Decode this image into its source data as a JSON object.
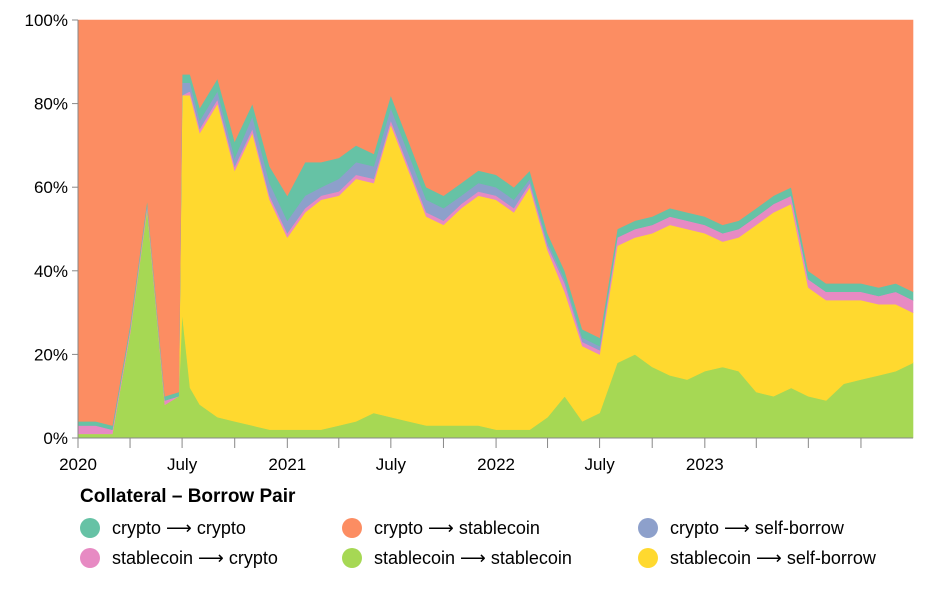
{
  "chart_data": {
    "type": "area",
    "stacking": "normalize",
    "y_ticks": [
      "0%",
      "20%",
      "40%",
      "60%",
      "80%",
      "100%"
    ],
    "ylim": [
      0,
      100
    ],
    "x_range": [
      "2020-01-01",
      "2023-12-31"
    ],
    "x_ticks": [
      {
        "date": "2020-01-01",
        "label": "2020"
      },
      {
        "date": "2020-04-01",
        "label": ""
      },
      {
        "date": "2020-07-01",
        "label": "July"
      },
      {
        "date": "2020-10-01",
        "label": ""
      },
      {
        "date": "2021-01-01",
        "label": "2021"
      },
      {
        "date": "2021-04-01",
        "label": ""
      },
      {
        "date": "2021-07-01",
        "label": "July"
      },
      {
        "date": "2021-10-01",
        "label": ""
      },
      {
        "date": "2022-01-01",
        "label": "2022"
      },
      {
        "date": "2022-04-01",
        "label": ""
      },
      {
        "date": "2022-07-01",
        "label": "July"
      },
      {
        "date": "2022-10-01",
        "label": ""
      },
      {
        "date": "2023-01-01",
        "label": "2023"
      },
      {
        "date": "2023-04-01",
        "label": ""
      },
      {
        "date": "2023-07-01",
        "label": ""
      },
      {
        "date": "2023-10-01",
        "label": ""
      }
    ],
    "x": [
      "2020-01-01",
      "2020-02-01",
      "2020-03-01",
      "2020-04-01",
      "2020-05-01",
      "2020-06-01",
      "2020-06-25",
      "2020-07-01",
      "2020-07-15",
      "2020-08-01",
      "2020-09-01",
      "2020-10-01",
      "2020-11-01",
      "2020-12-01",
      "2021-01-01",
      "2021-02-01",
      "2021-03-01",
      "2021-04-01",
      "2021-05-01",
      "2021-06-01",
      "2021-07-01",
      "2021-08-01",
      "2021-09-01",
      "2021-10-01",
      "2021-11-01",
      "2021-12-01",
      "2022-01-01",
      "2022-02-01",
      "2022-03-01",
      "2022-04-01",
      "2022-05-01",
      "2022-06-01",
      "2022-07-01",
      "2022-08-01",
      "2022-09-01",
      "2022-10-01",
      "2022-11-01",
      "2022-12-01",
      "2023-01-01",
      "2023-02-01",
      "2023-03-01",
      "2023-04-01",
      "2023-05-01",
      "2023-06-01",
      "2023-07-01",
      "2023-08-01",
      "2023-09-01",
      "2023-10-01",
      "2023-11-01",
      "2023-12-01",
      "2023-12-31"
    ],
    "series": [
      {
        "name": "stablecoin → stablecoin",
        "color": "#a6d854",
        "values": [
          1,
          1,
          1,
          25,
          55,
          8,
          10,
          30,
          12,
          8,
          5,
          4,
          3,
          2,
          2,
          2,
          2,
          3,
          4,
          6,
          5,
          4,
          3,
          3,
          3,
          3,
          2,
          2,
          2,
          5,
          10,
          4,
          6,
          18,
          20,
          17,
          15,
          14,
          16,
          17,
          16,
          11,
          10,
          12,
          10,
          9,
          13,
          14,
          15,
          16,
          18
        ]
      },
      {
        "name": "stablecoin → self-borrow",
        "color": "#ffd92f",
        "values": [
          0,
          0,
          0,
          0,
          0,
          0,
          0,
          52,
          70,
          65,
          75,
          60,
          70,
          55,
          46,
          52,
          55,
          55,
          58,
          55,
          70,
          60,
          50,
          48,
          52,
          55,
          55,
          52,
          58,
          40,
          25,
          18,
          14,
          28,
          28,
          32,
          36,
          36,
          33,
          30,
          32,
          40,
          44,
          44,
          26,
          24,
          20,
          19,
          17,
          16,
          12
        ]
      },
      {
        "name": "stablecoin → crypto",
        "color": "#e78ac3",
        "values": [
          2,
          2,
          1,
          1,
          1,
          1,
          0,
          0,
          1,
          1,
          1,
          1,
          1,
          1,
          1,
          1,
          1,
          1,
          1,
          1,
          1,
          1,
          1,
          1,
          1,
          1,
          1,
          1,
          1,
          1,
          2,
          1,
          1,
          2,
          2,
          2,
          2,
          2,
          2,
          2,
          2,
          2,
          2,
          2,
          2,
          2,
          2,
          2,
          2,
          3,
          3
        ]
      },
      {
        "name": "crypto → self-borrow",
        "color": "#8da0cb",
        "values": [
          0,
          0,
          0,
          0,
          0,
          0,
          0,
          3,
          2,
          2,
          2,
          2,
          3,
          3,
          3,
          3,
          2,
          3,
          3,
          3,
          3,
          3,
          3,
          3,
          2,
          2,
          2,
          2,
          1,
          1,
          1,
          1,
          1,
          0,
          0,
          0,
          0,
          0,
          0,
          0,
          0,
          0,
          0,
          0,
          0,
          0,
          0,
          0,
          0,
          0,
          0
        ]
      },
      {
        "name": "crypto → crypto",
        "color": "#66c2a5",
        "values": [
          1,
          1,
          1,
          1,
          1,
          1,
          1,
          2,
          2,
          3,
          3,
          4,
          3,
          4,
          6,
          8,
          6,
          5,
          4,
          3,
          3,
          3,
          3,
          3,
          3,
          3,
          3,
          3,
          2,
          2,
          2,
          2,
          2,
          2,
          2,
          2,
          2,
          2,
          2,
          2,
          2,
          2,
          2,
          2,
          2,
          2,
          2,
          2,
          2,
          2,
          2
        ]
      },
      {
        "name": "crypto → stablecoin",
        "color": "#fc8d62",
        "values": [
          96,
          96,
          97,
          73,
          43,
          90,
          89,
          13,
          13,
          21,
          14,
          29,
          20,
          35,
          42,
          34,
          34,
          33,
          30,
          32,
          18,
          29,
          40,
          42,
          39,
          36,
          37,
          40,
          36,
          51,
          60,
          74,
          76,
          50,
          48,
          47,
          45,
          46,
          47,
          49,
          48,
          45,
          42,
          40,
          60,
          63,
          63,
          63,
          64,
          63,
          65
        ]
      }
    ]
  },
  "legend": {
    "title": "Collateral – Borrow Pair",
    "items": [
      {
        "label": "crypto ⟶ crypto",
        "color": "#66c2a5"
      },
      {
        "label": "crypto ⟶ stablecoin",
        "color": "#fc8d62"
      },
      {
        "label": "crypto ⟶ self-borrow",
        "color": "#8da0cb"
      },
      {
        "label": "stablecoin ⟶ crypto",
        "color": "#e78ac3"
      },
      {
        "label": "stablecoin ⟶ stablecoin",
        "color": "#a6d854"
      },
      {
        "label": "stablecoin ⟶ self-borrow",
        "color": "#ffd92f"
      }
    ]
  }
}
